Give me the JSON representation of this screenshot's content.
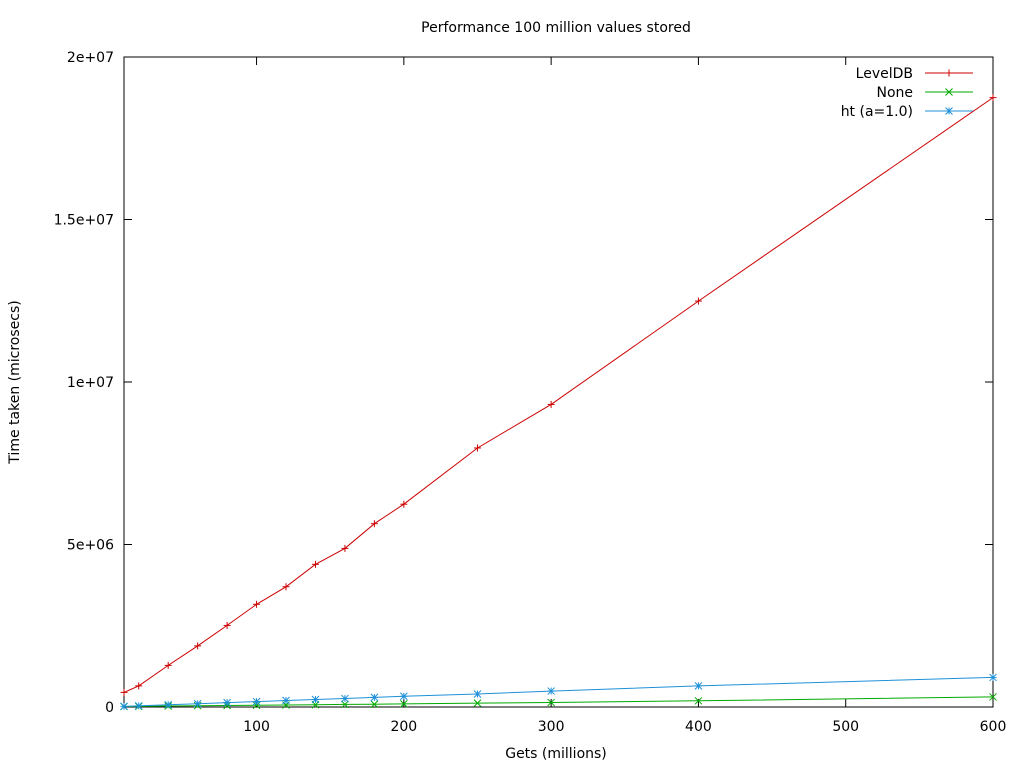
{
  "chart_data": {
    "type": "line",
    "title": "Performance 100 million values stored",
    "xlabel": "Gets (millions)",
    "ylabel": "Time taken (microsecs)",
    "xlim": [
      10,
      600
    ],
    "ylim": [
      0,
      20000000
    ],
    "x_ticks": [
      {
        "value": 100,
        "label": "100"
      },
      {
        "value": 200,
        "label": "200"
      },
      {
        "value": 300,
        "label": "300"
      },
      {
        "value": 400,
        "label": "400"
      },
      {
        "value": 500,
        "label": "500"
      },
      {
        "value": 600,
        "label": "600"
      }
    ],
    "y_ticks": [
      {
        "value": 0,
        "label": "0"
      },
      {
        "value": 5000000,
        "label": "5e+06"
      },
      {
        "value": 10000000,
        "label": "1e+07"
      },
      {
        "value": 15000000,
        "label": "1.5e+07"
      },
      {
        "value": 20000000,
        "label": "2e+07"
      }
    ],
    "grid": false,
    "legend_position": "top-right",
    "series": [
      {
        "name": "LevelDB",
        "color": "#cc0000",
        "marker": "plus",
        "x": [
          10,
          20,
          40,
          60,
          80,
          100,
          120,
          140,
          160,
          180,
          200,
          250,
          300,
          400,
          600
        ],
        "y": [
          450000,
          650000,
          1280000,
          1880000,
          2510000,
          3160000,
          3700000,
          4390000,
          4880000,
          5640000,
          6240000,
          7970000,
          9310000,
          12490000,
          18750000
        ]
      },
      {
        "name": "None",
        "color": "#00aa00",
        "marker": "cross",
        "x": [
          10,
          20,
          40,
          60,
          80,
          100,
          120,
          140,
          160,
          180,
          200,
          250,
          300,
          400,
          600
        ],
        "y": [
          15000,
          20000,
          30000,
          40000,
          45000,
          55000,
          60000,
          70000,
          80000,
          85000,
          95000,
          120000,
          140000,
          190000,
          310000
        ]
      },
      {
        "name": "ht (a=1.0)",
        "color": "#1e90d8",
        "marker": "star",
        "x": [
          10,
          20,
          40,
          60,
          80,
          100,
          120,
          140,
          160,
          180,
          200,
          250,
          300,
          400,
          600
        ],
        "y": [
          20000,
          35000,
          70000,
          100000,
          135000,
          165000,
          200000,
          230000,
          260000,
          295000,
          330000,
          400000,
          490000,
          650000,
          910000
        ]
      }
    ]
  }
}
